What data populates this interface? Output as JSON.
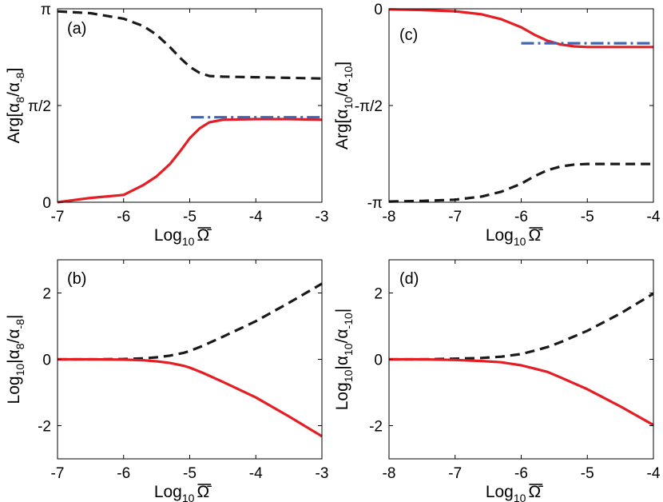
{
  "colors": {
    "black": "#1a1a1a",
    "red": "#e41e24",
    "blue": "#3e66b4"
  },
  "chart_data": [
    {
      "panel": "(a)",
      "type": "line",
      "xlabel": "Log10 Ω̄",
      "ylabel_parts": [
        "Arg[α",
        "8",
        "/α",
        "-8",
        "]"
      ],
      "xlim": [
        -7,
        -3
      ],
      "ylim": [
        0,
        3.14159
      ],
      "xticks": [
        -7,
        -6,
        -5,
        -4,
        -3
      ],
      "xtick_labels": [
        "-7",
        "-6",
        "-5",
        "-4",
        "-3"
      ],
      "yticks": [
        0,
        1.5708,
        3.14159
      ],
      "ytick_labels": [
        "0",
        "π/2",
        "π"
      ],
      "series": [
        {
          "name": "dashed-black",
          "style": "dashed",
          "color": "black",
          "x": [
            -7,
            -6.5,
            -6,
            -5.7,
            -5.5,
            -5.3,
            -5.15,
            -5,
            -4.85,
            -4.7,
            -4.5,
            -4,
            -3.5,
            -3
          ],
          "y": [
            3.1,
            3.07,
            2.98,
            2.86,
            2.72,
            2.52,
            2.35,
            2.2,
            2.1,
            2.05,
            2.04,
            2.03,
            2.02,
            2.01
          ]
        },
        {
          "name": "solid-red",
          "style": "solid",
          "color": "red",
          "x": [
            -7,
            -6.5,
            -6,
            -5.7,
            -5.5,
            -5.3,
            -5.15,
            -5,
            -4.85,
            -4.7,
            -4.5,
            -4,
            -3.5,
            -3
          ],
          "y": [
            0.0,
            0.07,
            0.12,
            0.28,
            0.42,
            0.62,
            0.82,
            1.04,
            1.2,
            1.3,
            1.34,
            1.35,
            1.35,
            1.34
          ]
        },
        {
          "name": "dashdot-blue",
          "style": "dashdot",
          "color": "blue",
          "x": [
            -4.98,
            -3
          ],
          "y": [
            1.38,
            1.38
          ]
        }
      ]
    },
    {
      "panel": "(c)",
      "type": "line",
      "xlabel": "Log10 Ω̄",
      "ylabel_parts": [
        "Arg[α",
        "10",
        "/α",
        "-10",
        "]"
      ],
      "xlim": [
        -8,
        -4
      ],
      "ylim": [
        -3.14159,
        0
      ],
      "xticks": [
        -8,
        -7,
        -6,
        -5,
        -4
      ],
      "xtick_labels": [
        "-8",
        "-7",
        "-6",
        "-5",
        "-4"
      ],
      "yticks": [
        -3.14159,
        -1.5708,
        0
      ],
      "ytick_labels": [
        "-π",
        "-π/2",
        "0"
      ],
      "series": [
        {
          "name": "dashed-black",
          "style": "dashed",
          "color": "black",
          "x": [
            -8,
            -7.5,
            -7,
            -6.6,
            -6.3,
            -6,
            -5.8,
            -5.6,
            -5.4,
            -5.2,
            -5,
            -4.5,
            -4
          ],
          "y": [
            -3.13,
            -3.12,
            -3.1,
            -3.05,
            -2.97,
            -2.84,
            -2.72,
            -2.62,
            -2.56,
            -2.53,
            -2.52,
            -2.52,
            -2.52
          ]
        },
        {
          "name": "solid-red",
          "style": "solid",
          "color": "red",
          "x": [
            -8,
            -7.5,
            -7,
            -6.6,
            -6.3,
            -6,
            -5.8,
            -5.6,
            -5.4,
            -5.2,
            -5,
            -4.5,
            -4
          ],
          "y": [
            -0.01,
            -0.02,
            -0.04,
            -0.09,
            -0.17,
            -0.3,
            -0.42,
            -0.52,
            -0.58,
            -0.61,
            -0.62,
            -0.62,
            -0.62
          ]
        },
        {
          "name": "dashdot-blue",
          "style": "dashdot",
          "color": "blue",
          "x": [
            -6,
            -4
          ],
          "y": [
            -0.56,
            -0.56
          ]
        }
      ]
    },
    {
      "panel": "(b)",
      "type": "line",
      "xlabel": "Log10 Ω̄",
      "ylabel_parts": [
        "Log",
        "10",
        "|α",
        "8",
        "/α",
        "-8",
        "|"
      ],
      "xlim": [
        -7,
        -3
      ],
      "ylim": [
        -3,
        3
      ],
      "xticks": [
        -7,
        -6,
        -5,
        -4,
        -3
      ],
      "xtick_labels": [
        "-7",
        "-6",
        "-5",
        "-4",
        "-3"
      ],
      "yticks": [
        -2,
        0,
        2
      ],
      "ytick_labels": [
        "-2",
        "0",
        "2"
      ],
      "series": [
        {
          "name": "dashed-black",
          "style": "dashed",
          "color": "black",
          "x": [
            -7,
            -6.5,
            -6,
            -5.7,
            -5.5,
            -5.3,
            -5.1,
            -5,
            -4.8,
            -4.5,
            -4,
            -3.5,
            -3
          ],
          "y": [
            0.0,
            0.0,
            0.01,
            0.03,
            0.06,
            0.11,
            0.19,
            0.25,
            0.41,
            0.68,
            1.15,
            1.7,
            2.28
          ]
        },
        {
          "name": "solid-red",
          "style": "solid",
          "color": "red",
          "x": [
            -7,
            -6.5,
            -6,
            -5.7,
            -5.5,
            -5.3,
            -5.1,
            -5,
            -4.8,
            -4.5,
            -4,
            -3.5,
            -3
          ],
          "y": [
            0.0,
            0.0,
            -0.01,
            -0.03,
            -0.06,
            -0.11,
            -0.19,
            -0.25,
            -0.41,
            -0.68,
            -1.15,
            -1.72,
            -2.32
          ]
        }
      ]
    },
    {
      "panel": "(d)",
      "type": "line",
      "xlabel": "Log10 Ω̄",
      "ylabel_parts": [
        "Log",
        "10",
        "|α",
        "10",
        "/α",
        "-10",
        "|"
      ],
      "xlim": [
        -8,
        -4
      ],
      "ylim": [
        -3,
        3
      ],
      "xticks": [
        -8,
        -7,
        -6,
        -5,
        -4
      ],
      "xtick_labels": [
        "-8",
        "-7",
        "-6",
        "-5",
        "-4"
      ],
      "yticks": [
        -2,
        0,
        2
      ],
      "ytick_labels": [
        "-2",
        "0",
        "2"
      ],
      "series": [
        {
          "name": "dashed-black",
          "style": "dashed",
          "color": "black",
          "x": [
            -8,
            -7.5,
            -7,
            -6.6,
            -6.3,
            -6,
            -5.8,
            -5.6,
            -5.4,
            -5,
            -4.5,
            -4
          ],
          "y": [
            0.0,
            0.0,
            0.02,
            0.04,
            0.08,
            0.16,
            0.26,
            0.37,
            0.52,
            0.86,
            1.38,
            1.98
          ]
        },
        {
          "name": "solid-red",
          "style": "solid",
          "color": "red",
          "x": [
            -8,
            -7.5,
            -7,
            -6.6,
            -6.3,
            -6,
            -5.8,
            -5.6,
            -5.4,
            -5,
            -4.5,
            -4
          ],
          "y": [
            0.0,
            0.0,
            -0.02,
            -0.05,
            -0.09,
            -0.18,
            -0.28,
            -0.38,
            -0.55,
            -0.9,
            -1.42,
            -1.98
          ]
        }
      ]
    }
  ]
}
